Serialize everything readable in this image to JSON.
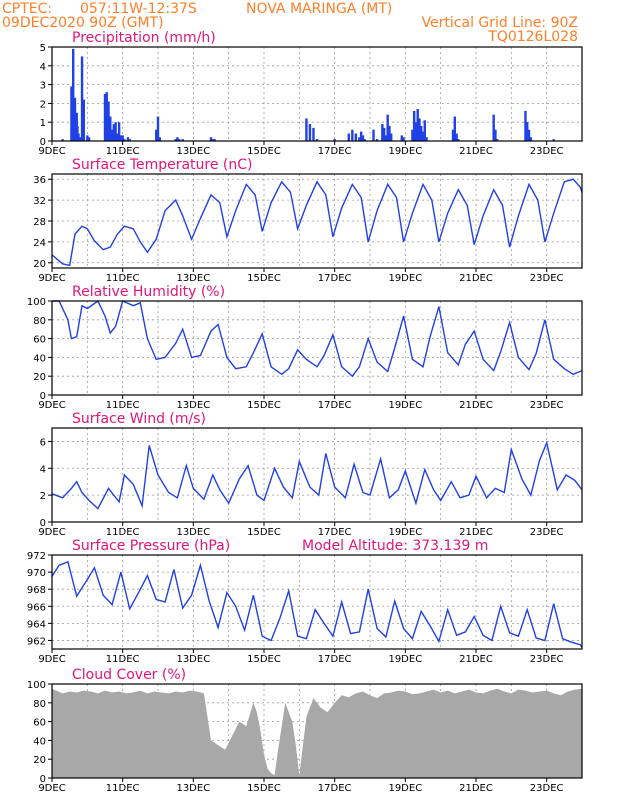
{
  "header": {
    "source": "CPTEC:",
    "coords": "057:11W-12:37S",
    "station": "NOVA MARINGA (MT)",
    "init": "09DEC2020 90Z (GMT)",
    "grid_line": "Vertical Grid Line: 90Z",
    "code": "TQ0126L028"
  },
  "colors": {
    "line": "#2040e8",
    "bar": "#2040e8",
    "cloud": "#a8a8a8",
    "title": "#e0167a",
    "header": "#ff7f27"
  },
  "x_tick_labels": [
    "9DEC",
    "11DEC",
    "13DEC",
    "15DEC",
    "17DEC",
    "19DEC",
    "21DEC",
    "23DEC"
  ],
  "x_range_days": [
    9,
    24
  ],
  "chart_data": [
    {
      "type": "bar",
      "title": "Precipitation (mm/h)",
      "ylim": [
        0,
        5
      ],
      "yticks": [
        0,
        1,
        2,
        3,
        4,
        5
      ],
      "x": [
        9.3,
        9.55,
        9.6,
        9.65,
        9.7,
        9.72,
        9.75,
        9.8,
        9.85,
        9.9,
        10.0,
        10.05,
        10.5,
        10.55,
        10.6,
        10.65,
        10.7,
        10.75,
        10.8,
        10.85,
        10.9,
        10.95,
        11.0,
        11.05,
        11.15,
        11.2,
        11.95,
        12.0,
        12.05,
        12.5,
        12.55,
        12.6,
        12.7,
        13.5,
        13.55,
        13.6,
        16.2,
        16.3,
        16.4,
        16.5,
        17.0,
        17.4,
        17.5,
        17.6,
        17.7,
        17.75,
        17.8,
        17.85,
        18.1,
        18.2,
        18.35,
        18.4,
        18.45,
        18.5,
        18.55,
        18.6,
        18.9,
        18.95,
        19.2,
        19.25,
        19.3,
        19.35,
        19.4,
        19.45,
        19.5,
        19.55,
        19.6,
        20.35,
        20.4,
        20.45,
        20.5,
        21.5,
        21.55,
        21.6,
        22.4,
        22.45,
        22.5,
        22.55,
        23.2
      ],
      "values": [
        0.1,
        2.9,
        4.9,
        2.3,
        1.5,
        0.8,
        0.4,
        0.2,
        4.5,
        2.2,
        0.3,
        0.2,
        2.5,
        2.6,
        2.1,
        1.3,
        0.6,
        0.9,
        1.0,
        0.4,
        1.0,
        0.3,
        0.3,
        0.1,
        0.2,
        0.1,
        0.6,
        1.3,
        0.2,
        0.1,
        0.2,
        0.1,
        0.1,
        0.2,
        0.1,
        0.1,
        1.2,
        0.9,
        0.7,
        0.1,
        0.1,
        0.4,
        0.6,
        0.4,
        0.2,
        0.5,
        0.3,
        0.1,
        0.6,
        0.1,
        0.9,
        0.7,
        0.3,
        1.4,
        0.8,
        0.4,
        0.3,
        0.2,
        0.6,
        1.6,
        1.0,
        1.7,
        1.2,
        0.8,
        0.5,
        1.1,
        0.2,
        0.6,
        1.3,
        0.4,
        0.1,
        1.4,
        0.6,
        0.1,
        1.6,
        1.0,
        0.6,
        0.2,
        0.1
      ]
    },
    {
      "type": "line",
      "title": "Surface Temperature (nC)",
      "ylim": [
        19,
        37
      ],
      "yticks": [
        20,
        24,
        28,
        32,
        36
      ],
      "x": [
        9.0,
        9.3,
        9.5,
        9.65,
        9.85,
        10.0,
        10.2,
        10.45,
        10.65,
        10.85,
        11.05,
        11.3,
        11.5,
        11.7,
        11.95,
        12.2,
        12.5,
        12.7,
        12.95,
        13.2,
        13.5,
        13.75,
        13.95,
        14.2,
        14.5,
        14.75,
        14.95,
        15.2,
        15.5,
        15.75,
        15.95,
        16.2,
        16.5,
        16.75,
        16.95,
        17.2,
        17.5,
        17.75,
        17.95,
        18.2,
        18.5,
        18.75,
        18.95,
        19.2,
        19.5,
        19.75,
        19.95,
        20.2,
        20.5,
        20.75,
        20.95,
        21.2,
        21.5,
        21.75,
        21.95,
        22.2,
        22.5,
        22.75,
        22.95,
        23.2,
        23.5,
        23.75,
        23.95,
        24.0
      ],
      "values": [
        21.5,
        19.8,
        19.5,
        25.5,
        27.0,
        26.5,
        24.2,
        22.5,
        23.0,
        25.5,
        27.0,
        26.5,
        24.0,
        22.0,
        24.5,
        30.0,
        32.0,
        29.0,
        24.5,
        28.5,
        33.0,
        31.5,
        25.0,
        30.0,
        35.0,
        33.0,
        26.0,
        31.5,
        35.5,
        33.5,
        26.5,
        31.0,
        35.5,
        33.0,
        25.0,
        30.5,
        35.0,
        32.5,
        24.0,
        30.0,
        35.0,
        32.5,
        24.0,
        29.5,
        35.0,
        32.0,
        24.0,
        29.5,
        34.0,
        31.0,
        23.5,
        29.0,
        34.0,
        31.0,
        23.0,
        29.0,
        35.0,
        32.0,
        24.0,
        29.5,
        35.5,
        36.0,
        34.5,
        33.5
      ]
    },
    {
      "type": "line",
      "title": "Relative Humidity (%)",
      "ylim": [
        0,
        100
      ],
      "yticks": [
        0,
        20,
        40,
        60,
        80,
        100
      ],
      "x": [
        9.0,
        9.2,
        9.45,
        9.55,
        9.7,
        9.85,
        10.0,
        10.3,
        10.5,
        10.65,
        10.8,
        11.0,
        11.3,
        11.5,
        11.7,
        11.95,
        12.2,
        12.5,
        12.7,
        12.95,
        13.2,
        13.5,
        13.7,
        13.95,
        14.2,
        14.5,
        14.7,
        14.95,
        15.2,
        15.5,
        15.7,
        15.95,
        16.2,
        16.5,
        16.7,
        16.95,
        17.2,
        17.5,
        17.7,
        17.95,
        18.2,
        18.5,
        18.7,
        18.95,
        19.2,
        19.5,
        19.7,
        19.95,
        20.2,
        20.5,
        20.7,
        20.95,
        21.2,
        21.5,
        21.7,
        21.95,
        22.2,
        22.5,
        22.7,
        22.95,
        23.2,
        23.5,
        23.75,
        24.0
      ],
      "values": [
        100,
        100,
        80,
        60,
        62,
        95,
        92,
        100,
        84,
        66,
        73,
        100,
        95,
        98,
        60,
        38,
        40,
        55,
        70,
        40,
        42,
        68,
        75,
        40,
        28,
        30,
        45,
        65,
        30,
        22,
        28,
        48,
        38,
        30,
        42,
        64,
        30,
        20,
        30,
        60,
        35,
        25,
        50,
        84,
        38,
        30,
        62,
        94,
        45,
        32,
        54,
        68,
        38,
        26,
        46,
        77,
        40,
        27,
        44,
        80,
        38,
        28,
        22,
        26
      ]
    },
    {
      "type": "line",
      "title": "Surface Wind (m/s)",
      "ylim": [
        0,
        7
      ],
      "yticks": [
        0,
        2,
        4,
        6
      ],
      "x": [
        9.0,
        9.3,
        9.55,
        9.7,
        9.85,
        10.05,
        10.3,
        10.6,
        10.9,
        11.05,
        11.3,
        11.55,
        11.75,
        12.0,
        12.3,
        12.55,
        12.8,
        13.0,
        13.3,
        13.55,
        13.75,
        14.0,
        14.3,
        14.55,
        14.8,
        15.0,
        15.3,
        15.55,
        15.8,
        16.0,
        16.3,
        16.55,
        16.75,
        17.0,
        17.3,
        17.55,
        17.8,
        18.0,
        18.3,
        18.55,
        18.8,
        19.0,
        19.3,
        19.55,
        19.8,
        20.0,
        20.3,
        20.55,
        20.8,
        21.0,
        21.3,
        21.55,
        21.8,
        22.0,
        22.3,
        22.55,
        22.8,
        23.0,
        23.3,
        23.55,
        23.8,
        24.0
      ],
      "values": [
        2.1,
        1.8,
        2.5,
        3.0,
        2.2,
        1.6,
        1.0,
        2.5,
        1.5,
        3.5,
        2.8,
        1.2,
        5.7,
        3.5,
        2.2,
        1.8,
        4.2,
        2.5,
        1.7,
        3.5,
        2.4,
        1.4,
        3.2,
        4.2,
        2.0,
        1.6,
        4.0,
        2.6,
        1.8,
        4.5,
        2.6,
        2.0,
        5.1,
        2.6,
        1.8,
        4.3,
        2.2,
        2.0,
        4.7,
        1.8,
        2.4,
        3.8,
        1.4,
        3.9,
        2.4,
        1.6,
        3.0,
        1.8,
        2.0,
        3.4,
        1.8,
        2.5,
        2.2,
        5.4,
        3.2,
        2.0,
        4.6,
        5.9,
        2.4,
        3.5,
        3.1,
        2.4
      ]
    },
    {
      "type": "line",
      "title": "Surface Pressure (hPa)",
      "annotation": "Model Altitude: 373.139 m",
      "ylim": [
        961,
        972
      ],
      "yticks": [
        962,
        964,
        966,
        968,
        970,
        972
      ],
      "x": [
        9.0,
        9.2,
        9.45,
        9.7,
        9.95,
        10.2,
        10.45,
        10.7,
        10.95,
        11.2,
        11.45,
        11.7,
        11.95,
        12.2,
        12.45,
        12.7,
        12.95,
        13.2,
        13.45,
        13.7,
        13.95,
        14.2,
        14.45,
        14.7,
        14.95,
        15.2,
        15.45,
        15.7,
        15.95,
        16.2,
        16.45,
        16.7,
        16.95,
        17.2,
        17.45,
        17.7,
        17.95,
        18.2,
        18.45,
        18.7,
        18.95,
        19.2,
        19.45,
        19.7,
        19.95,
        20.2,
        20.45,
        20.7,
        20.95,
        21.2,
        21.45,
        21.7,
        21.95,
        22.2,
        22.45,
        22.7,
        22.95,
        23.2,
        23.45,
        23.7,
        23.95,
        24.0
      ],
      "values": [
        969.5,
        970.8,
        971.2,
        967.2,
        968.8,
        970.5,
        967.3,
        966.2,
        970.0,
        965.7,
        967.6,
        969.6,
        966.8,
        966.5,
        970.3,
        965.8,
        967.3,
        970.8,
        966.6,
        963.5,
        967.6,
        966.0,
        963.2,
        967.3,
        962.5,
        962.0,
        964.6,
        967.8,
        962.5,
        962.2,
        965.6,
        964.0,
        962.5,
        966.5,
        962.8,
        963.0,
        968.0,
        963.4,
        962.4,
        966.6,
        963.4,
        962.2,
        965.4,
        963.7,
        961.9,
        965.6,
        962.6,
        963.0,
        964.8,
        962.6,
        962.0,
        966.0,
        962.9,
        962.5,
        965.6,
        962.3,
        962.0,
        966.3,
        962.2,
        961.8,
        961.5,
        961.2
      ]
    },
    {
      "type": "area",
      "title": "Cloud Cover (%)",
      "ylim": [
        0,
        100
      ],
      "yticks": [
        0,
        20,
        40,
        60,
        80,
        100
      ],
      "x": [
        9.0,
        9.3,
        9.5,
        9.7,
        9.9,
        10.1,
        10.3,
        10.5,
        10.7,
        10.9,
        11.1,
        11.3,
        11.5,
        11.7,
        11.9,
        12.1,
        12.3,
        12.5,
        12.7,
        12.9,
        13.1,
        13.3,
        13.5,
        13.7,
        13.9,
        14.1,
        14.3,
        14.5,
        14.7,
        14.8,
        14.9,
        15.0,
        15.1,
        15.2,
        15.3,
        15.4,
        15.5,
        15.6,
        15.7,
        15.8,
        15.9,
        16.0,
        16.2,
        16.4,
        16.6,
        16.8,
        17.0,
        17.2,
        17.4,
        17.6,
        17.8,
        18.0,
        18.2,
        18.4,
        18.6,
        18.8,
        19.0,
        19.2,
        19.4,
        19.6,
        19.8,
        20.0,
        20.2,
        20.4,
        20.6,
        20.8,
        21.0,
        21.2,
        21.4,
        21.6,
        21.8,
        22.0,
        22.2,
        22.4,
        22.6,
        22.8,
        23.0,
        23.2,
        23.4,
        23.6,
        23.8,
        24.0
      ],
      "values": [
        95,
        90,
        92,
        91,
        93,
        92,
        90,
        93,
        91,
        92,
        90,
        91,
        93,
        90,
        92,
        91,
        90,
        92,
        91,
        93,
        92,
        90,
        40,
        35,
        30,
        45,
        60,
        55,
        80,
        70,
        50,
        25,
        10,
        5,
        3,
        30,
        55,
        80,
        70,
        60,
        35,
        3,
        65,
        85,
        75,
        70,
        80,
        88,
        86,
        90,
        92,
        88,
        85,
        90,
        91,
        93,
        92,
        89,
        90,
        92,
        94,
        91,
        93,
        90,
        92,
        94,
        91,
        90,
        93,
        95,
        92,
        90,
        94,
        93,
        91,
        92,
        93,
        90,
        88,
        92,
        94,
        95
      ]
    }
  ]
}
